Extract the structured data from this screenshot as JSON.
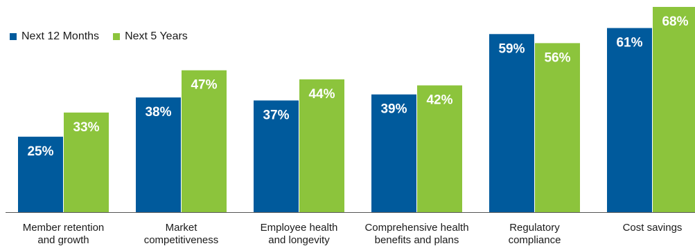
{
  "chart_data": {
    "type": "bar",
    "categories": [
      [
        "Member retention",
        "and growth"
      ],
      [
        "Market",
        "competitiveness"
      ],
      [
        "Employee health",
        "and longevity"
      ],
      [
        "Comprehensive health",
        "benefits and plans"
      ],
      [
        "Regulatory",
        "compliance"
      ],
      [
        "Cost savings"
      ]
    ],
    "series": [
      {
        "name": "Next 12 Months",
        "color": "#005a9c",
        "values": [
          25,
          38,
          37,
          39,
          59,
          61
        ],
        "labels": [
          "25%",
          "38%",
          "37%",
          "39%",
          "59%",
          "61%"
        ]
      },
      {
        "name": "Next 5 Years",
        "color": "#8cc43c",
        "values": [
          33,
          47,
          44,
          42,
          56,
          68
        ],
        "labels": [
          "33%",
          "47%",
          "44%",
          "42%",
          "56%",
          "68%"
        ]
      }
    ],
    "ylim": [
      0,
      68
    ],
    "grid": false,
    "legend_position": "top-left"
  }
}
